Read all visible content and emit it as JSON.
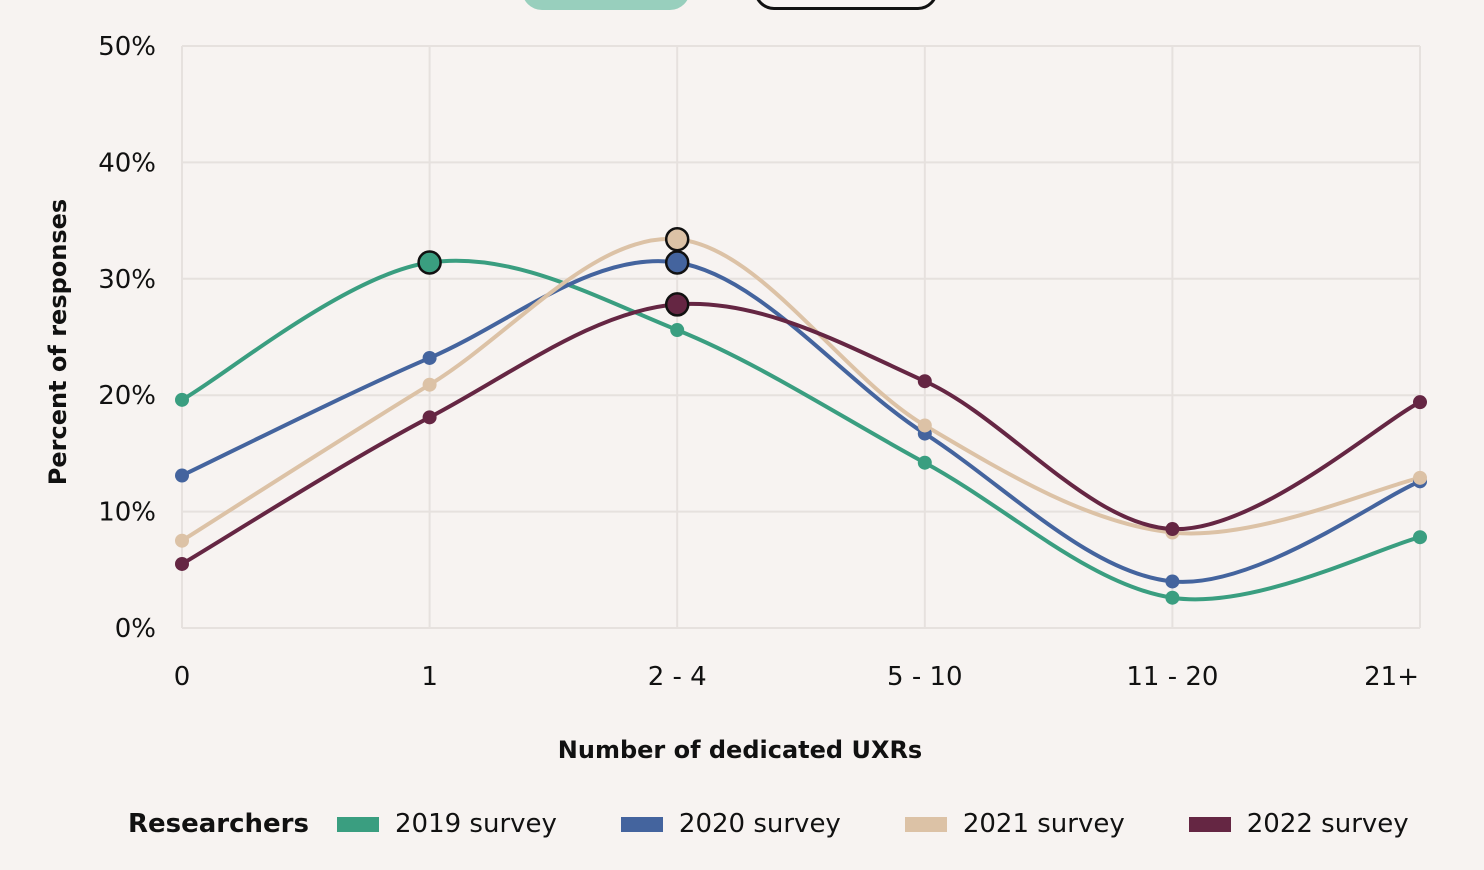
{
  "chart_data": {
    "type": "line",
    "title": "",
    "xlabel": "Number of dedicated UXRs",
    "ylabel": "Percent of responses",
    "ylim": [
      0,
      50
    ],
    "yticks": [
      "0%",
      "10%",
      "20%",
      "30%",
      "40%",
      "50%"
    ],
    "ytick_values": [
      0,
      10,
      20,
      30,
      40,
      50
    ],
    "categories": [
      "0",
      "1",
      "2 - 4",
      "5 - 10",
      "11 - 20",
      "21+"
    ],
    "grid": true,
    "legend_title": "Researchers",
    "legend_position": "bottom",
    "series": [
      {
        "name": "2019 survey",
        "color": "#3a9e80",
        "values": [
          19.6,
          31.4,
          25.6,
          14.2,
          2.6,
          7.8
        ],
        "highlight_index": 1
      },
      {
        "name": "2020 survey",
        "color": "#44649e",
        "values": [
          13.1,
          23.2,
          31.4,
          16.7,
          4.0,
          12.6
        ],
        "highlight_index": 2
      },
      {
        "name": "2021 survey",
        "color": "#dcc2a6",
        "values": [
          7.5,
          20.9,
          33.4,
          17.4,
          8.2,
          12.9
        ],
        "highlight_index": 2
      },
      {
        "name": "2022 survey",
        "color": "#652643",
        "values": [
          5.5,
          18.1,
          27.8,
          21.2,
          8.5,
          19.4
        ],
        "highlight_index": 2
      }
    ]
  }
}
